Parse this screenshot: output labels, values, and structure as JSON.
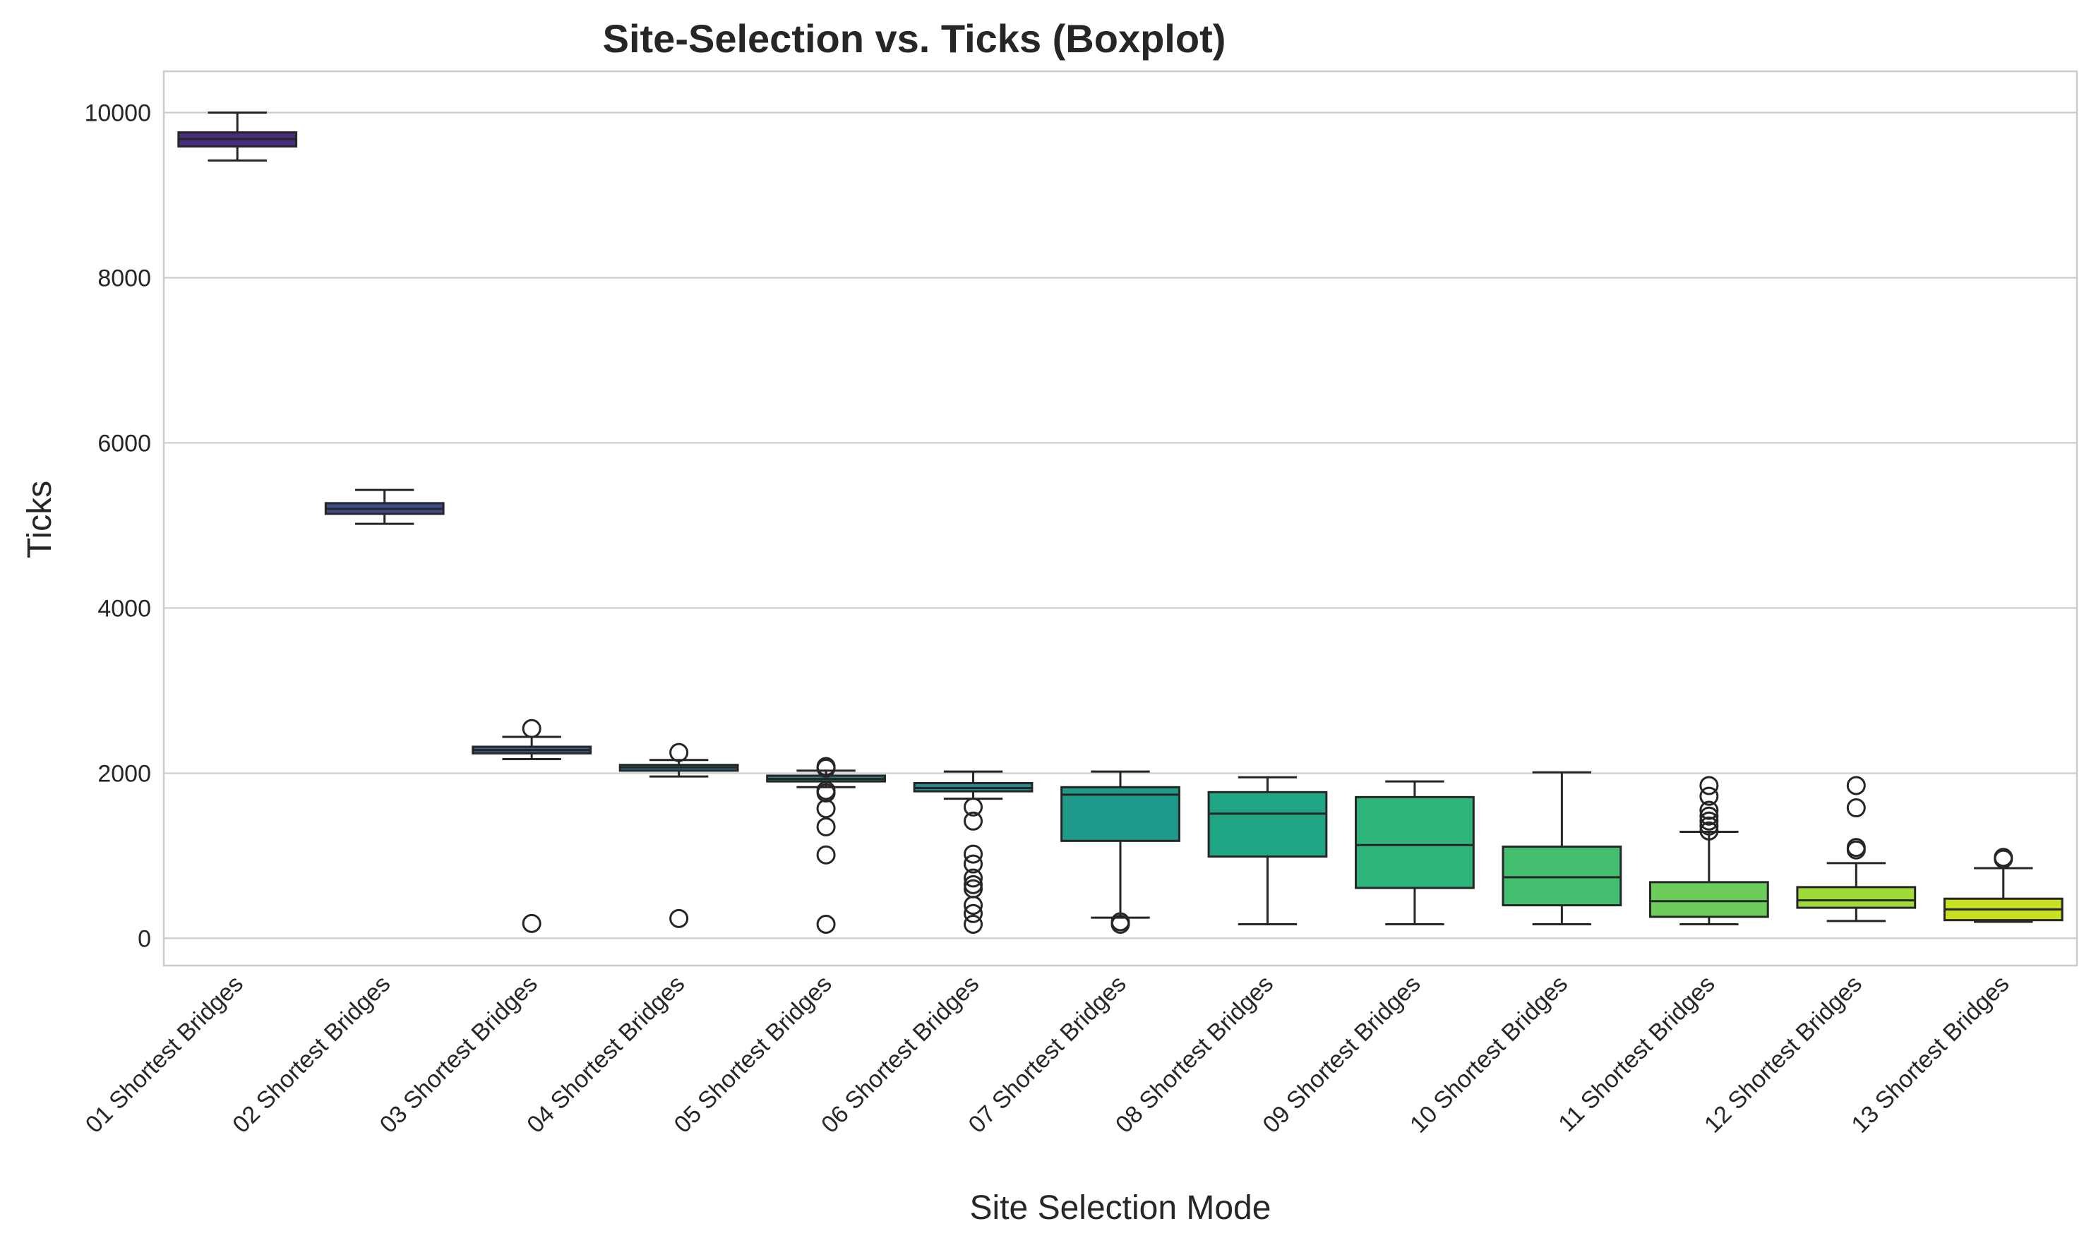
{
  "chart_data": {
    "type": "boxplot",
    "title": "Site-Selection vs. Ticks (Boxplot)",
    "xlabel": "Site Selection Mode",
    "ylabel": "Ticks",
    "ylim": [
      -330,
      10500
    ],
    "yticks": [
      0,
      2000,
      4000,
      6000,
      8000,
      10000
    ],
    "grid": "horizontal",
    "palette": "viridis",
    "categories": [
      "01 Shortest Bridges",
      "02 Shortest Bridges",
      "03 Shortest Bridges",
      "04 Shortest Bridges",
      "05 Shortest Bridges",
      "06 Shortest Bridges",
      "07 Shortest Bridges",
      "08 Shortest Bridges",
      "09 Shortest Bridges",
      "10 Shortest Bridges",
      "11 Shortest Bridges",
      "12 Shortest Bridges",
      "13 Shortest Bridges"
    ],
    "boxes": [
      {
        "whislo": 9420,
        "q1": 9590,
        "med": 9680,
        "q3": 9760,
        "whishi": 10000,
        "fliers": [],
        "color": "#472d7b"
      },
      {
        "whislo": 5020,
        "q1": 5140,
        "med": 5200,
        "q3": 5270,
        "whishi": 5430,
        "fliers": [],
        "color": "#3e4a89"
      },
      {
        "whislo": 2170,
        "q1": 2240,
        "med": 2280,
        "q3": 2320,
        "whishi": 2440,
        "fliers": [
          2540,
          180
        ],
        "color": "#355f8d"
      },
      {
        "whislo": 1960,
        "q1": 2030,
        "med": 2070,
        "q3": 2100,
        "whishi": 2160,
        "fliers": [
          2250,
          240
        ],
        "color": "#2e6f8e"
      },
      {
        "whislo": 1830,
        "q1": 1900,
        "med": 1930,
        "q3": 1970,
        "whishi": 2030,
        "fliers": [
          2080,
          2060,
          1790,
          1760,
          1570,
          1350,
          1010,
          170
        ],
        "color": "#287d8e"
      },
      {
        "whislo": 1690,
        "q1": 1780,
        "med": 1820,
        "q3": 1880,
        "whishi": 2020,
        "fliers": [
          1590,
          1420,
          1020,
          900,
          730,
          650,
          600,
          400,
          300,
          170
        ],
        "color": "#228c8d"
      },
      {
        "whislo": 250,
        "q1": 1180,
        "med": 1740,
        "q3": 1830,
        "whishi": 2020,
        "fliers": [
          200,
          170
        ],
        "color": "#1f9a8a"
      },
      {
        "whislo": 170,
        "q1": 990,
        "med": 1510,
        "q3": 1770,
        "whishi": 1950,
        "fliers": [],
        "color": "#21a685"
      },
      {
        "whislo": 170,
        "q1": 610,
        "med": 1130,
        "q3": 1710,
        "whishi": 1900,
        "fliers": [],
        "color": "#2fb47c"
      },
      {
        "whislo": 170,
        "q1": 400,
        "med": 740,
        "q3": 1110,
        "whishi": 2010,
        "fliers": [],
        "color": "#44bf70"
      },
      {
        "whislo": 170,
        "q1": 260,
        "med": 450,
        "q3": 680,
        "whishi": 1290,
        "fliers": [
          1850,
          1720,
          1550,
          1480,
          1420,
          1360,
          1300
        ],
        "color": "#6ccd5a"
      },
      {
        "whislo": 210,
        "q1": 370,
        "med": 460,
        "q3": 620,
        "whishi": 910,
        "fliers": [
          1850,
          1580,
          1100,
          1070
        ],
        "color": "#a0da39"
      },
      {
        "whislo": 200,
        "q1": 220,
        "med": 350,
        "q3": 480,
        "whishi": 850,
        "fliers": [
          980,
          960
        ],
        "color": "#c8e020"
      }
    ]
  }
}
